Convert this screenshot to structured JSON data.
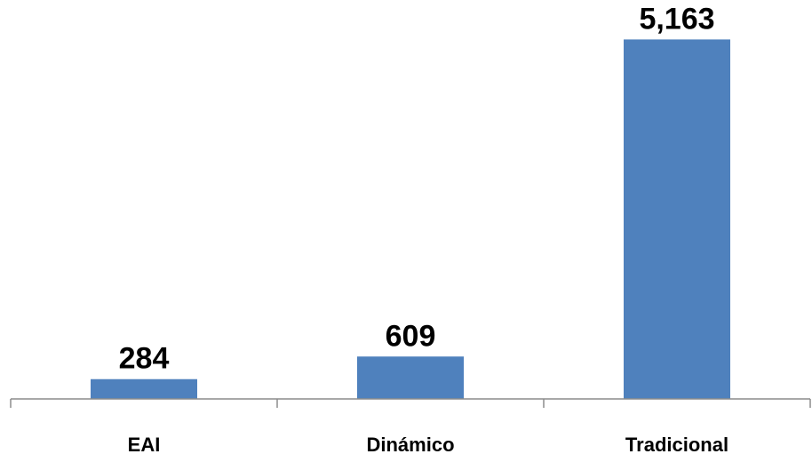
{
  "chart_data": {
    "type": "bar",
    "title": "",
    "xlabel": "",
    "ylabel": "",
    "categories": [
      "EAI",
      "Dinámico",
      "Tradicional"
    ],
    "values": [
      284,
      609,
      5163
    ],
    "data_labels": [
      "284",
      "609",
      "5,163"
    ],
    "ylim": [
      0,
      5500
    ],
    "grid": false,
    "legend": "none",
    "y_axis_visible": false,
    "bar_color": "#4f81bd",
    "axis_color": "#8c8c8c",
    "label_color": "#000000"
  }
}
